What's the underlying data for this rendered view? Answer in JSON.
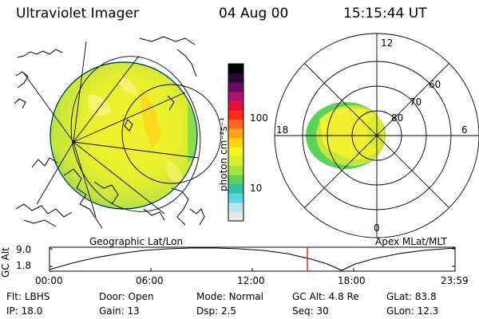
{
  "header": {
    "instrument": "Ultraviolet Imager",
    "date": "04 Aug 00",
    "time": "15:15:44 UT"
  },
  "colorbar": {
    "unit_label": "photon cm⁻²s⁻¹",
    "ticks": [
      {
        "label": "100",
        "value": 100
      },
      {
        "label": "10",
        "value": 10
      }
    ],
    "colors": [
      "#e8e8e8",
      "#bfe6f0",
      "#5ad6e8",
      "#2fc4a8",
      "#5bd25a",
      "#a8e23c",
      "#d8ee2a",
      "#f2f21e",
      "#ffd21a",
      "#ffa21a",
      "#ff6a1a",
      "#ff2a1a",
      "#e0103c",
      "#b01070",
      "#6a0a6a",
      "#2a0a30",
      "#000000"
    ]
  },
  "geo_panel": {
    "label": "Geographic Lat/Lon"
  },
  "polar_panel": {
    "label": "Apex MLat/MLT",
    "mlt_labels": {
      "top": "12",
      "left": "18",
      "right": "6",
      "bottom": "0"
    },
    "lat_labels": [
      "60",
      "70",
      "80"
    ]
  },
  "altitude_plot": {
    "ylabel": "GC Alt",
    "y_ticks": [
      "9.0",
      "1.8"
    ],
    "x_ticks": [
      "00:00",
      "06:00",
      "12:00",
      "18:00",
      "23:59"
    ],
    "current_time_marker": "15:15",
    "marker_color": "#e02020"
  },
  "footer": {
    "flt": {
      "label": "Flt:",
      "value": "LBHS"
    },
    "door": {
      "label": "Door:",
      "value": "Open"
    },
    "mode": {
      "label": "Mode:",
      "value": "Normal"
    },
    "gc_alt": {
      "label": "GC Alt:",
      "value": "4.8 Re"
    },
    "glat": {
      "label": "GLat:",
      "value": "83.8"
    },
    "ip": {
      "label": "IP:",
      "value": "18.0"
    },
    "gain": {
      "label": "Gain:",
      "value": "13"
    },
    "dsp": {
      "label": "Dsp:",
      "value": "2.5"
    },
    "seq": {
      "label": "Seq:",
      "value": "30"
    },
    "glon": {
      "label": "GLon:",
      "value": "12.3"
    }
  }
}
